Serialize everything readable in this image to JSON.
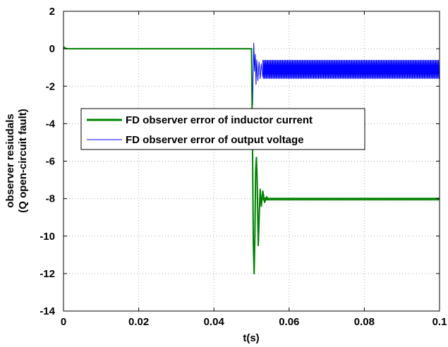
{
  "chart_data": {
    "type": "line",
    "title": "",
    "xlabel": "t(s)",
    "ylabel_lines": [
      "observer resiudals",
      "(Q open-circuit fault)"
    ],
    "xlim": [
      0,
      0.1
    ],
    "ylim": [
      -14,
      2
    ],
    "xticks": [
      0,
      0.02,
      0.04,
      0.06,
      0.08,
      0.1
    ],
    "xtick_labels": [
      "0",
      "0.02",
      "0.04",
      "0.06",
      "0.08",
      "0.1"
    ],
    "yticks": [
      2,
      0,
      -2,
      -4,
      -6,
      -8,
      -10,
      -12,
      -14
    ],
    "ytick_labels": [
      "2",
      "0",
      "-2",
      "-4",
      "-6",
      "-8",
      "-10",
      "-12",
      "-14"
    ],
    "grid": true,
    "legend_position": "center-left",
    "series": [
      {
        "name": "FD observer error of inductor current",
        "color": "#008000",
        "x": [
          0,
          0.0002,
          0.0005,
          0.001,
          0.01,
          0.02,
          0.03,
          0.04,
          0.0495,
          0.05,
          0.0501,
          0.0502,
          0.0503,
          0.0504,
          0.0505,
          0.0507,
          0.0509,
          0.0511,
          0.0513,
          0.0515,
          0.0518,
          0.052,
          0.0523,
          0.0526,
          0.053,
          0.0535,
          0.054,
          0.0545,
          0.055,
          0.06,
          0.07,
          0.08,
          0.09,
          0.1
        ],
        "y": [
          0,
          0.08,
          0.02,
          0,
          0,
          0,
          0,
          0,
          0,
          0,
          -2.0,
          -4.0,
          -6.0,
          -8.5,
          -10.5,
          -12.0,
          -10.0,
          -6.5,
          -5.8,
          -7.0,
          -10.5,
          -9.2,
          -7.5,
          -8.4,
          -7.6,
          -8.2,
          -7.9,
          -8.05,
          -8.0,
          -8.0,
          -8.0,
          -8.0,
          -8.0,
          -8.0
        ],
        "band": {
          "x_start": 0.053,
          "x_end": 0.1,
          "low": -8.1,
          "high": -7.95
        }
      },
      {
        "name": "FD observer error of output voltage",
        "color": "#0000ff",
        "x": [
          0,
          0.0002,
          0.0005,
          0.001,
          0.01,
          0.02,
          0.03,
          0.04,
          0.0495,
          0.05,
          0.0501,
          0.0502,
          0.0503,
          0.0504,
          0.0506,
          0.0508,
          0.051,
          0.0512,
          0.0514,
          0.0517,
          0.052,
          0.0523,
          0.0526,
          0.053,
          0.0535,
          0.054
        ],
        "y": [
          0,
          0.06,
          0.02,
          0,
          0,
          0,
          0,
          0,
          0,
          0,
          -1.0,
          -2.6,
          -3.0,
          -1.8,
          0.3,
          -1.2,
          -0.3,
          -1.9,
          -0.6,
          -1.7,
          -0.7,
          -1.6,
          -0.8,
          -1.5,
          -0.9,
          -1.3
        ],
        "band": {
          "x_start": 0.053,
          "x_end": 0.1,
          "low": -1.6,
          "high": -0.6
        }
      }
    ]
  }
}
